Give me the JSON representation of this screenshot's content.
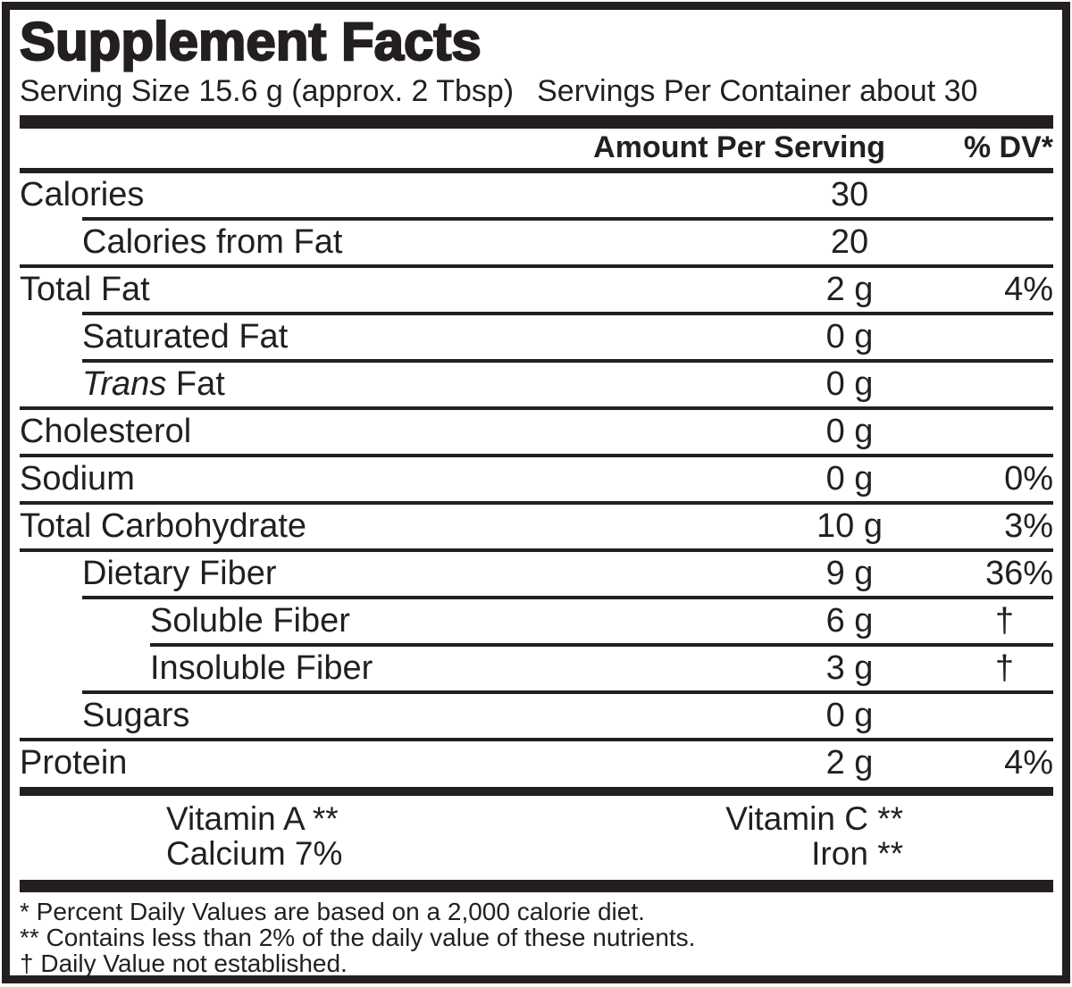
{
  "colors": {
    "ink": "#231f20",
    "paper": "#ffffff"
  },
  "label": {
    "title": "Supplement Facts",
    "serving_size": "Serving Size 15.6 g (approx. 2 Tbsp)",
    "servings_per_container": "Servings Per Container about 30",
    "columns": {
      "amount_header": "Amount Per Serving",
      "dv_header": "% DV*"
    }
  },
  "rows": [
    {
      "name": "Calories",
      "amount": "30",
      "dv": "",
      "indent": 0,
      "rule": null
    },
    {
      "name": "Calories from Fat",
      "amount": "20",
      "dv": "",
      "indent": 1,
      "rule": 1
    },
    {
      "name": "Total Fat",
      "amount": "2 g",
      "dv": "4%",
      "indent": 0,
      "rule": 0
    },
    {
      "name": "Saturated Fat",
      "amount": "0 g",
      "dv": "",
      "indent": 1,
      "rule": 1
    },
    {
      "name_italic": "Trans",
      "name": " Fat",
      "amount": "0 g",
      "dv": "",
      "indent": 1,
      "rule": 1
    },
    {
      "name": "Cholesterol",
      "amount": "0 g",
      "dv": "",
      "indent": 0,
      "rule": 0
    },
    {
      "name": "Sodium",
      "amount": "0 g",
      "dv": "0%",
      "indent": 0,
      "rule": 0
    },
    {
      "name": "Total Carbohydrate",
      "amount": "10 g",
      "dv": "3%",
      "indent": 0,
      "rule": 0
    },
    {
      "name": "Dietary Fiber",
      "amount": "9 g",
      "dv": "36%",
      "indent": 1,
      "rule": 0
    },
    {
      "name": "Soluble Fiber",
      "amount": "6 g",
      "dv": "†",
      "indent": 2,
      "rule": 1
    },
    {
      "name": "Insoluble Fiber",
      "amount": "3 g",
      "dv": "†",
      "indent": 2,
      "rule": 2
    },
    {
      "name": "Sugars",
      "amount": "0 g",
      "dv": "",
      "indent": 1,
      "rule": 1
    },
    {
      "name": "Protein",
      "amount": "2 g",
      "dv": "4%",
      "indent": 0,
      "rule": 0
    }
  ],
  "micronutrients": [
    {
      "left": "Vitamin A **",
      "right": "Vitamin C **"
    },
    {
      "left": "Calcium 7%",
      "right": "Iron **"
    }
  ],
  "footnotes": [
    "* Percent Daily Values are based on a 2,000 calorie diet.",
    "** Contains less than 2% of the daily value of these nutrients.",
    "† Daily Value not established."
  ]
}
